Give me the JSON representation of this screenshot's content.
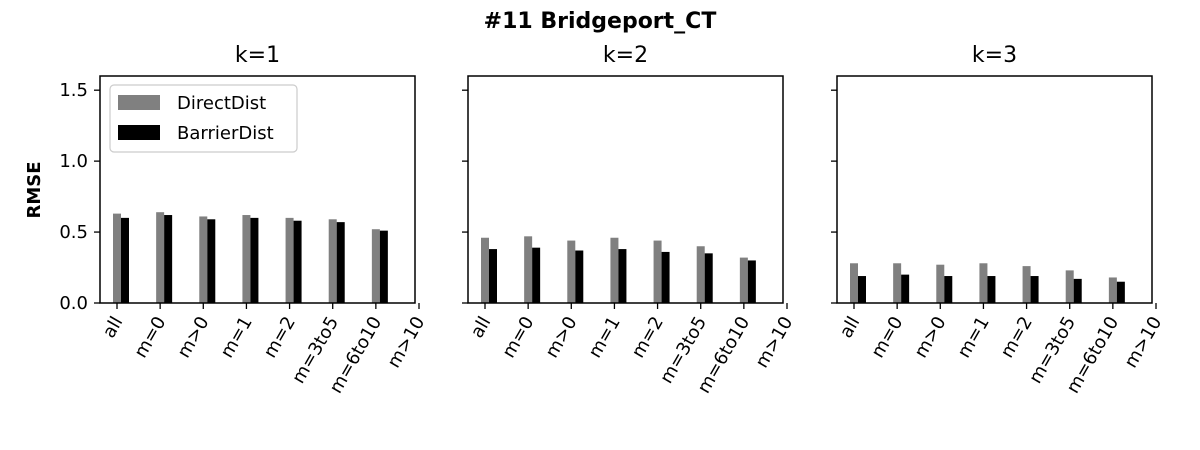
{
  "figure": {
    "title": "#11 Bridgeport_CT",
    "ylabel": "RMSE"
  },
  "colors": {
    "DirectDist": "#808080",
    "BarrierDist": "#000000"
  },
  "chart_data": [
    {
      "type": "bar",
      "title": "k=1",
      "ylabel": "RMSE",
      "ylim": [
        0,
        1.6
      ],
      "yticks": [
        "0.0",
        "0.5",
        "1.0",
        "1.5"
      ],
      "categories": [
        "all",
        "m=0",
        "m>0",
        "m=1",
        "m=2",
        "m=3to5",
        "m=6to10",
        "m>10"
      ],
      "legend": "upper-left",
      "series": [
        {
          "name": "DirectDist",
          "values": [
            0.63,
            0.64,
            0.61,
            0.62,
            0.6,
            0.59,
            0.52,
            null
          ]
        },
        {
          "name": "BarrierDist",
          "values": [
            0.6,
            0.62,
            0.59,
            0.6,
            0.58,
            0.57,
            0.51,
            null
          ]
        }
      ]
    },
    {
      "type": "bar",
      "title": "k=2",
      "ylim": [
        0,
        1.6
      ],
      "categories": [
        "all",
        "m=0",
        "m>0",
        "m=1",
        "m=2",
        "m=3to5",
        "m=6to10",
        "m>10"
      ],
      "series": [
        {
          "name": "DirectDist",
          "values": [
            0.46,
            0.47,
            0.44,
            0.46,
            0.44,
            0.4,
            0.32,
            null
          ]
        },
        {
          "name": "BarrierDist",
          "values": [
            0.38,
            0.39,
            0.37,
            0.38,
            0.36,
            0.35,
            0.3,
            null
          ]
        }
      ]
    },
    {
      "type": "bar",
      "title": "k=3",
      "ylim": [
        0,
        1.6
      ],
      "categories": [
        "all",
        "m=0",
        "m>0",
        "m=1",
        "m=2",
        "m=3to5",
        "m=6to10",
        "m>10"
      ],
      "series": [
        {
          "name": "DirectDist",
          "values": [
            0.28,
            0.28,
            0.27,
            0.28,
            0.26,
            0.23,
            0.18,
            null
          ]
        },
        {
          "name": "BarrierDist",
          "values": [
            0.19,
            0.2,
            0.19,
            0.19,
            0.19,
            0.17,
            0.15,
            null
          ]
        }
      ]
    }
  ]
}
